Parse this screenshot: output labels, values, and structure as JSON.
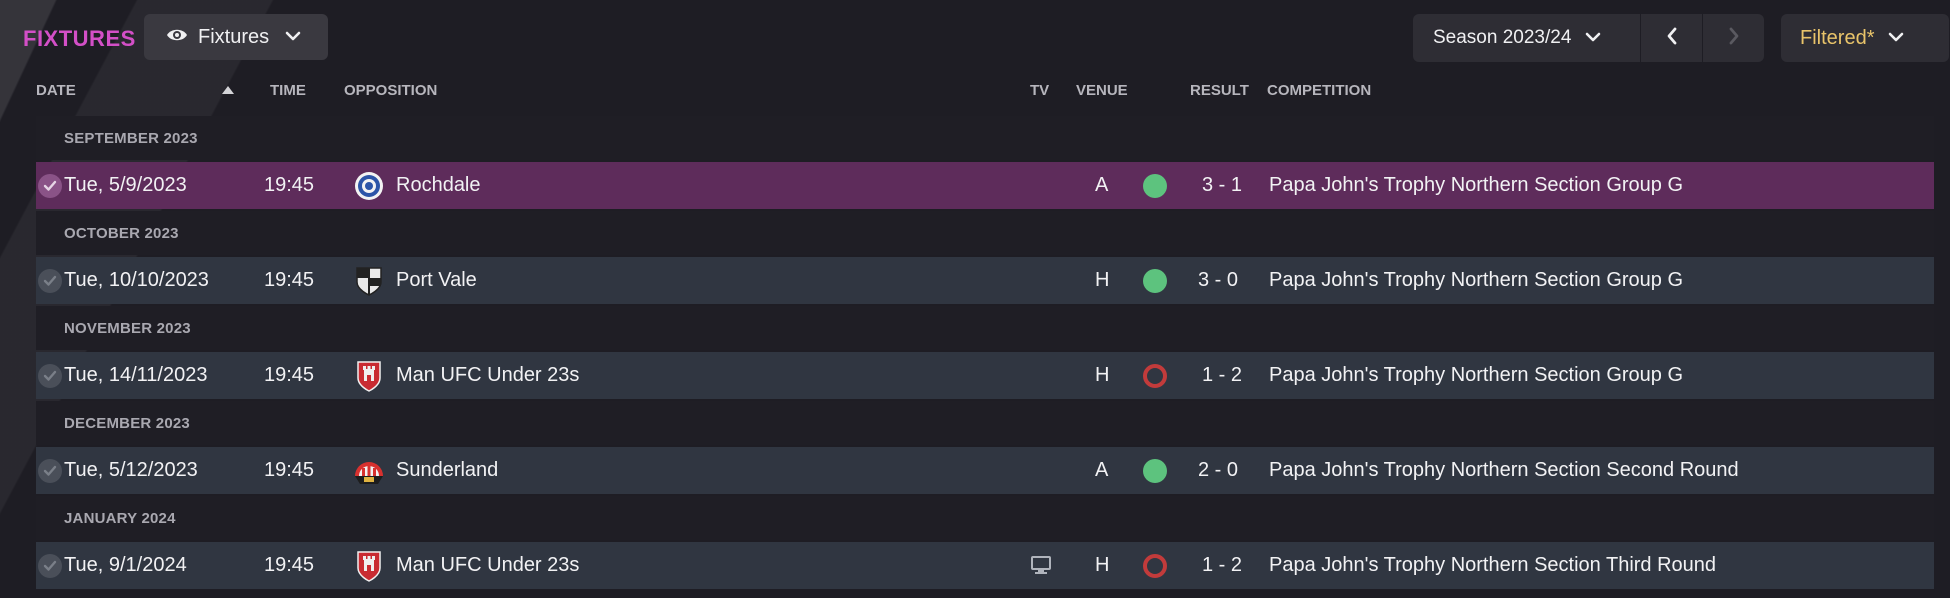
{
  "header": {
    "title": "FIXTURES",
    "view_label": "Fixtures",
    "season_label": "Season 2023/24",
    "filter_label": "Filtered*"
  },
  "columns": {
    "date": "DATE",
    "time": "TIME",
    "opposition": "OPPOSITION",
    "tv": "TV",
    "venue": "VENUE",
    "result": "RESULT",
    "competition": "COMPETITION"
  },
  "colors": {
    "title": "#d34fc7",
    "selected_row": "#5e2c5b",
    "row": "#303641",
    "win": "#5dc37e",
    "loss": "#c23b3b",
    "filter": "#e9c46a"
  },
  "months": [
    "SEPTEMBER 2023",
    "OCTOBER 2023",
    "NOVEMBER 2023",
    "DECEMBER 2023",
    "JANUARY 2024"
  ],
  "fixtures": [
    {
      "date": "Tue, 5/9/2023",
      "time": "19:45",
      "opponent": "Rochdale",
      "crest": "rochdale-crest-icon",
      "tv": false,
      "venue": "A",
      "outcome": "win",
      "score": "3 - 1",
      "competition": "Papa John's Trophy Northern Section Group G",
      "selected": true
    },
    {
      "date": "Tue, 10/10/2023",
      "time": "19:45",
      "opponent": "Port Vale",
      "crest": "port-vale-crest-icon",
      "tv": false,
      "venue": "H",
      "outcome": "win",
      "score": "3 - 0",
      "competition": "Papa John's Trophy Northern Section Group G",
      "selected": false
    },
    {
      "date": "Tue, 14/11/2023",
      "time": "19:45",
      "opponent": "Man UFC Under 23s",
      "crest": "man-ufc-crest-icon",
      "tv": false,
      "venue": "H",
      "outcome": "loss",
      "score": "1 - 2",
      "competition": "Papa John's Trophy Northern Section Group G",
      "selected": false
    },
    {
      "date": "Tue, 5/12/2023",
      "time": "19:45",
      "opponent": "Sunderland",
      "crest": "sunderland-crest-icon",
      "tv": false,
      "venue": "A",
      "outcome": "win",
      "score": "2 - 0",
      "competition": "Papa John's Trophy Northern Section Second Round",
      "selected": false
    },
    {
      "date": "Tue, 9/1/2024",
      "time": "19:45",
      "opponent": "Man UFC Under 23s",
      "crest": "man-ufc-crest-icon",
      "tv": true,
      "venue": "H",
      "outcome": "loss",
      "score": "1 - 2",
      "competition": "Papa John's Trophy Northern Section Third Round",
      "selected": false
    }
  ]
}
